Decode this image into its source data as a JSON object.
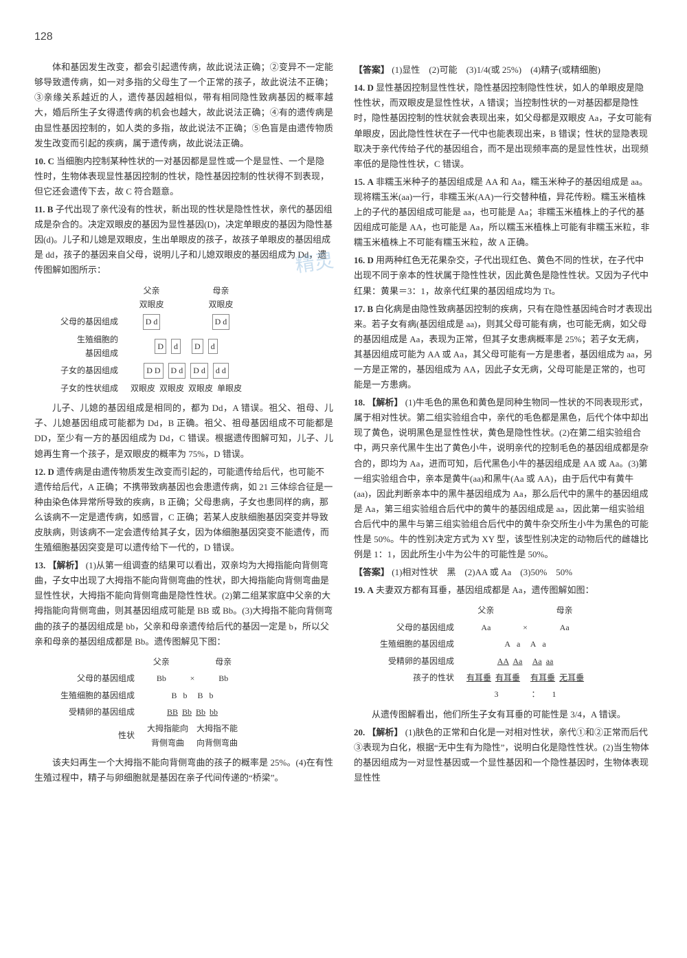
{
  "page_number": "128",
  "watermark": "精灵",
  "left": {
    "p0": "体和基因发生改变，都会引起遗传病，故此说法正确；②变异不一定能够导致遗传病，如一对多指的父母生了一个正常的孩子，故此说法不正确；③亲缘关系越近的人，遗传基因越相似，带有相同隐性致病基因的概率越大，婚后所生子女得遗传病的机会也越大，故此说法正确；④有的遗传病是由显性基因控制的，如人类的多指，故此说法不正确；⑤色盲是由遗传物质发生改变而引起的疾病，属于遗传病，故此说法正确。",
    "i10_num": "10.",
    "i10_ans": "C",
    "i10_body": "当细胞内控制某种性状的一对基因都是显性或一个是显性、一个是隐性时，生物体表现显性基因控制的性状，隐性基因控制的性状得不到表现，但它还会遗传下去，故 C 符合题意。",
    "i11_num": "11.",
    "i11_ans": "B",
    "i11_body1": "子代出现了亲代没有的性状，新出现的性状是隐性性状，亲代的基因组成是杂合的。决定双眼皮的基因为显性基因(D)，决定单眼皮的基因为隐性基因(d)。儿子和儿媳是双眼皮，生出单眼皮的孩子，故孩子单眼皮的基因组成是 dd，孩子的基因来自父母，说明儿子和儿媳双眼皮的基因组成为 Dd，遗传图解如图所示：",
    "diag1": {
      "row1_label": "父母的基因组成",
      "father_top": "父亲\n双眼皮",
      "mother_top": "母亲\n双眼皮",
      "father_geno": "D d",
      "mother_geno": "D d",
      "row2_label": "生殖细胞的\n基因组成",
      "g1": "D",
      "g2": "d",
      "g3": "D",
      "g4": "d",
      "row3_label": "子女的基因组成",
      "c1": "D D",
      "c2": "D d",
      "c3": "D d",
      "c4": "d d",
      "row4_label": "子女的性状组成",
      "t1": "双眼皮",
      "t2": "双眼皮",
      "t3": "双眼皮",
      "t4": "单眼皮"
    },
    "i11_body2": "儿子、儿媳的基因组成是相同的，都为 Dd，A 错误。祖父、祖母、儿子、儿媳基因组成可能都为 Dd，B 正确。祖父、祖母基因组成不可能都是 DD，至少有一方的基因组成为 Dd，C 错误。根据遗传图解可知，儿子、儿媳再生育一个孩子，是双眼皮的概率为 75%，D 错误。",
    "i12_num": "12.",
    "i12_ans": "D",
    "i12_body": "遗传病是由遗传物质发生改变而引起的，可能遗传给后代，也可能不遗传给后代，A 正确；不携带致病基因也会患遗传病，如 21 三体综合征是一种由染色体异常所导致的疾病，B 正确；父母患病，子女也患同样的病，那么该病不一定是遗传病，如感冒，C 正确；若某人皮肤细胞基因突变并导致皮肤病，则该病不一定会遗传给其子女，因为体细胞基因突变不能遗传，而生殖细胞基因突变是可以遗传给下一代的，D 错误。",
    "i13_num": "13.",
    "i13_head": "【解析】",
    "i13_body1": "(1)从第一组调查的结果可以看出，双亲均为大拇指能向背侧弯曲，子女中出现了大拇指不能向背侧弯曲的性状，即大拇指能向背侧弯曲是显性性状，大拇指不能向背侧弯曲是隐性性状。(2)第二组某家庭中父亲的大拇指能向背侧弯曲，则其基因组成可能是 BB 或 Bb。(3)大拇指不能向背侧弯曲的孩子的基因组成是 bb，父亲和母亲遗传给后代的基因一定是 b，所以父亲和母亲的基因组成都是 Bb。遗传图解见下图：",
    "diag2": {
      "top_father": "父亲",
      "top_mother": "母亲",
      "row1_label": "父母的基因组成",
      "f_geno": "Bb",
      "m_geno": "Bb",
      "x": "×",
      "row2_label": "生殖细胞的基因组成",
      "g1": "B",
      "g2": "b",
      "g3": "B",
      "g4": "b",
      "row3_label": "受精卵的基因组成",
      "c1": "BB",
      "c2": "Bb",
      "c3": "Bb",
      "c4": "bb",
      "row4_label": "性状",
      "t1": "大拇指能向\n背侧弯曲",
      "t2": "大拇指不能\n向背侧弯曲"
    },
    "i13_body2": "该夫妇再生一个大拇指不能向背侧弯曲的孩子的概率是 25%。(4)在有性生殖过程中，精子与卵细胞就是基因在亲子代间传递的“桥梁”。"
  },
  "right": {
    "ans_head": "【答案】",
    "ans_body": "(1)显性　(2)可能　(3)1/4(或 25%)　(4)精子(或精细胞)",
    "i14_num": "14.",
    "i14_ans": "D",
    "i14_body": "显性基因控制显性性状，隐性基因控制隐性性状，如人的单眼皮是隐性性状，而双眼皮是显性性状，A 错误；当控制性状的一对基因都是隐性时，隐性基因控制的性状就会表现出来，如父母都是双眼皮 Aa，子女可能有单眼皮，因此隐性性状在子一代中也能表现出来，B 错误；性状的显隐表现取决于亲代传给子代的基因组合，而不是出现频率高的是显性性状，出现频率低的是隐性性状，C 错误。",
    "i15_num": "15.",
    "i15_ans": "A",
    "i15_body": "非糯玉米种子的基因组成是 AA 和 Aa，糯玉米种子的基因组成是 aa。现将糯玉米(aa)一行，非糯玉米(AA)一行交替种植，异花传粉。糯玉米植株上的子代的基因组成可能是 aa，也可能是 Aa；非糯玉米植株上的子代的基因组成可能是 AA，也可能是 Aa，所以糯玉米植株上可能有非糯玉米粒，非糯玉米植株上不可能有糯玉米粒，故 A 正确。",
    "i16_num": "16.",
    "i16_ans": "D",
    "i16_body": "用两种红色无花果杂交，子代出现红色、黄色不同的性状，在子代中出现不同于亲本的性状属于隐性性状，因此黄色是隐性性状。又因为子代中红果：黄果＝3：1，故亲代红果的基因组成均为 Tt。",
    "i17_num": "17.",
    "i17_ans": "B",
    "i17_body": "白化病是由隐性致病基因控制的疾病，只有在隐性基因纯合时才表现出来。若子女有病(基因组成是 aa)，则其父母可能有病，也可能无病，如父母的基因组成是 Aa，表现为正常，但其子女患病概率是 25%；若子女无病，其基因组成可能为 AA 或 Aa，其父母可能有一方是患者，基因组成为 aa，另一方是正常的，基因组成为 AA，因此子女无病，父母可能是正常的，也可能是一方患病。",
    "i18_num": "18.",
    "i18_head": "【解析】",
    "i18_body": "(1)牛毛色的黑色和黄色是同种生物同一性状的不同表现形式，属于相对性状。第二组实验组合中，亲代的毛色都是黑色，后代个体中却出现了黄色，说明黑色是显性性状，黄色是隐性性状。(2)在第二组实验组合中，两只亲代黑牛生出了黄色小牛，说明亲代的控制毛色的基因组成都是杂合的，即均为 Aa，进而可知，后代黑色小牛的基因组成是 AA 或 Aa。(3)第一组实验组合中，亲本是黄牛(aa)和黑牛(Aa 或 AA)，由于后代中有黄牛(aa)，因此判断亲本中的黑牛基因组成为 Aa，那么后代中的黑牛的基因组成是 Aa，第三组实验组合后代中的黄牛的基因组成是 aa，因此第一组实验组合后代中的黑牛与第三组实验组合后代中的黄牛杂交所生小牛为黑色的可能性是 50%。牛的性别决定方式为 XY 型，该型性别决定的动物后代的雌雄比例是 1：1，因此所生小牛为公牛的可能性是 50%。",
    "i18_ans_head": "【答案】",
    "i18_ans_body": "(1)相对性状　黑　(2)AA 或 Aa　(3)50%　50%",
    "i19_num": "19.",
    "i19_ans": "A",
    "i19_body1": "夫妻双方都有耳垂，基因组成都是 Aa，遗传图解如图：",
    "diag3": {
      "top_father": "父亲",
      "top_mother": "母亲",
      "row1_label": "父母的基因组成",
      "f_geno": "Aa",
      "m_geno": "Aa",
      "x": "×",
      "row2_label": "生殖细胞的基因组成",
      "g1": "A",
      "g2": "a",
      "g3": "A",
      "g4": "a",
      "row3_label": "受精卵的基因组成",
      "c1": "AA",
      "c2": "Aa",
      "c3": "Aa",
      "c4": "aa",
      "row4_label": "孩子的性状",
      "t1": "有耳垂",
      "t2": "有耳垂",
      "t3": "有耳垂",
      "t4": "无耳垂",
      "ratio": "3　　　　：　　1"
    },
    "i19_body2": "从遗传图解看出，他们所生子女有耳垂的可能性是 3/4，A 错误。",
    "i20_num": "20.",
    "i20_head": "【解析】",
    "i20_body": "(1)肤色的正常和白化是一对相对性状，亲代①和②正常而后代③表现为白化，根据“无中生有为隐性”，说明白化是隐性性状。(2)当生物体的基因组成为一对显性基因或一个显性基因和一个隐性基因时，生物体表现显性性"
  }
}
